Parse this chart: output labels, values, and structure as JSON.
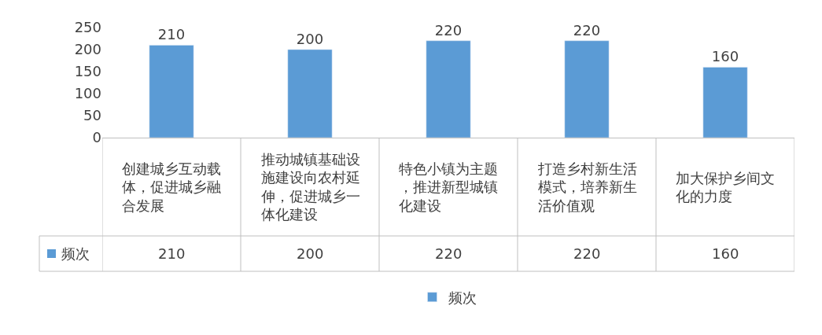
{
  "chart_data": {
    "type": "bar",
    "categories": [
      "创建城乡互动载体，促进城乡融合发展",
      "推动城镇基础设施建设向农村延伸，促进城乡一体化建设",
      "特色小镇为主题，推进新型城镇化建设",
      "打造乡村新生活模式，培养新生活价值观",
      "加大保护乡间文化的力度"
    ],
    "series": [
      {
        "name": "频次",
        "color": "#5b9bd5",
        "values": [
          210,
          200,
          220,
          220,
          160
        ],
        "value_labels": [
          "210",
          "200",
          "220",
          "220",
          "160"
        ]
      }
    ],
    "ylim": [
      0,
      250
    ],
    "yticks": [
      0,
      50,
      100,
      150,
      200,
      250
    ],
    "grid": false,
    "legend": "bottom",
    "data_labels": true
  }
}
